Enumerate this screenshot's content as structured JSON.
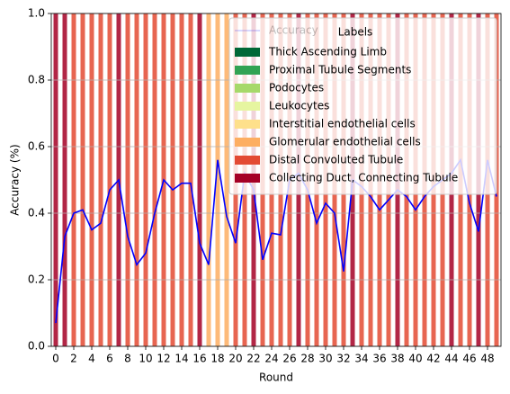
{
  "chart_data": {
    "type": "bar",
    "xlabel": "Round",
    "ylabel": "Accuracy (%)",
    "xlim": [
      -0.5,
      49.5
    ],
    "xticks": [
      0,
      2,
      4,
      6,
      8,
      10,
      12,
      14,
      16,
      18,
      20,
      22,
      24,
      26,
      28,
      30,
      32,
      34,
      36,
      38,
      40,
      42,
      44,
      46,
      48
    ],
    "ylim": [
      0,
      1
    ],
    "yticks": [
      {
        "value": 0,
        "label": "0.0"
      },
      0.2,
      0.4,
      0.6,
      0.8,
      {
        "value": 1,
        "label": "1.0"
      }
    ],
    "grid": true,
    "legend": "upper right",
    "legend_title": "Labels",
    "series": [
      {
        "name": "Thick Ascending Limb",
        "color": "#006837",
        "values": [
          null,
          null,
          null,
          null,
          null,
          null,
          null,
          null,
          null,
          null,
          null,
          null,
          null,
          null,
          null,
          null,
          null,
          null,
          null,
          null,
          null,
          null,
          null,
          null,
          null,
          null,
          null,
          null,
          null,
          null,
          null,
          null,
          null,
          null,
          null,
          null,
          null,
          null,
          null,
          null,
          null,
          null,
          null,
          null,
          null,
          null,
          null,
          null,
          null,
          null
        ]
      },
      {
        "name": "Proximal Tubule Segments",
        "color": "#31a354",
        "values": [
          null,
          null,
          null,
          null,
          null,
          null,
          null,
          null,
          null,
          null,
          null,
          null,
          null,
          null,
          null,
          null,
          null,
          null,
          null,
          null,
          null,
          null,
          null,
          null,
          null,
          null,
          null,
          null,
          null,
          null,
          null,
          null,
          null,
          null,
          null,
          null,
          null,
          null,
          null,
          null,
          null,
          null,
          null,
          null,
          null,
          null,
          null,
          null,
          null,
          null
        ]
      },
      {
        "name": "Podocytes",
        "color": "#a6d96a",
        "values": [
          null,
          null,
          null,
          null,
          null,
          null,
          null,
          null,
          null,
          null,
          null,
          null,
          null,
          null,
          null,
          null,
          null,
          null,
          null,
          null,
          null,
          null,
          null,
          null,
          null,
          null,
          null,
          null,
          null,
          null,
          null,
          null,
          null,
          null,
          null,
          null,
          null,
          null,
          null,
          null,
          null,
          null,
          null,
          null,
          null,
          null,
          null,
          null,
          null,
          null
        ]
      },
      {
        "name": "Leukocytes",
        "color": "#e6f5a0",
        "values": [
          null,
          null,
          null,
          null,
          null,
          null,
          null,
          null,
          null,
          null,
          null,
          null,
          null,
          null,
          null,
          null,
          null,
          null,
          null,
          null,
          null,
          null,
          null,
          null,
          null,
          null,
          null,
          null,
          null,
          null,
          null,
          null,
          null,
          null,
          null,
          null,
          null,
          null,
          null,
          null,
          null,
          null,
          null,
          null,
          null,
          null,
          null,
          null,
          null,
          null
        ]
      },
      {
        "name": "Interstitial endothelial cells",
        "color": "#fee08b",
        "values": [
          null,
          null,
          null,
          null,
          null,
          null,
          null,
          null,
          null,
          null,
          null,
          null,
          null,
          null,
          null,
          null,
          null,
          null,
          null,
          null,
          null,
          null,
          null,
          null,
          null,
          null,
          null,
          null,
          null,
          null,
          null,
          null,
          null,
          null,
          null,
          null,
          null,
          null,
          null,
          null,
          null,
          null,
          null,
          null,
          null,
          null,
          null,
          null,
          null,
          null
        ]
      },
      {
        "name": "Glomerular endothelial cells",
        "color": "#fdae61",
        "values": [
          null,
          null,
          null,
          null,
          null,
          null,
          null,
          null,
          null,
          null,
          null,
          null,
          null,
          null,
          null,
          null,
          null,
          1,
          1,
          1,
          null,
          null,
          null,
          null,
          null,
          null,
          null,
          null,
          null,
          null,
          null,
          null,
          null,
          null,
          null,
          null,
          null,
          null,
          null,
          null,
          null,
          null,
          null,
          null,
          null,
          null,
          null,
          null,
          null,
          null
        ]
      },
      {
        "name": "Distal Convoluted Tubule",
        "color": "#e34a33",
        "values": [
          null,
          null,
          1,
          1,
          1,
          1,
          1,
          null,
          1,
          1,
          1,
          1,
          1,
          1,
          1,
          1,
          null,
          null,
          null,
          null,
          1,
          1,
          null,
          1,
          1,
          1,
          1,
          null,
          1,
          1,
          1,
          1,
          1,
          null,
          1,
          1,
          1,
          1,
          null,
          1,
          1,
          1,
          1,
          1,
          null,
          1,
          1,
          null,
          1,
          1
        ]
      },
      {
        "name": "Collecting Duct, Connecting Tubule",
        "color": "#a50026",
        "values": [
          1,
          1,
          null,
          null,
          null,
          null,
          null,
          1,
          null,
          null,
          null,
          null,
          null,
          null,
          null,
          null,
          1,
          null,
          null,
          null,
          null,
          null,
          1,
          null,
          null,
          null,
          null,
          1,
          null,
          null,
          null,
          null,
          null,
          1,
          null,
          null,
          null,
          null,
          1,
          null,
          null,
          null,
          null,
          null,
          1,
          null,
          null,
          1,
          null,
          null
        ]
      }
    ],
    "line": {
      "name": "Accuracy",
      "color": "#0000ff",
      "values": [
        0.07,
        0.33,
        0.4,
        0.41,
        0.35,
        0.37,
        0.47,
        0.5,
        0.33,
        0.245,
        0.28,
        0.4,
        0.5,
        0.47,
        0.49,
        0.49,
        0.31,
        0.245,
        0.56,
        0.39,
        0.31,
        0.52,
        0.47,
        0.26,
        0.34,
        0.335,
        0.5,
        0.52,
        0.47,
        0.37,
        0.43,
        0.4,
        0.225,
        0.5,
        0.48,
        0.45,
        0.41,
        0.44,
        0.47,
        0.45,
        0.41,
        0.45,
        0.48,
        0.5,
        0.52,
        0.56,
        0.43,
        0.345,
        0.56,
        0.45
      ]
    }
  }
}
